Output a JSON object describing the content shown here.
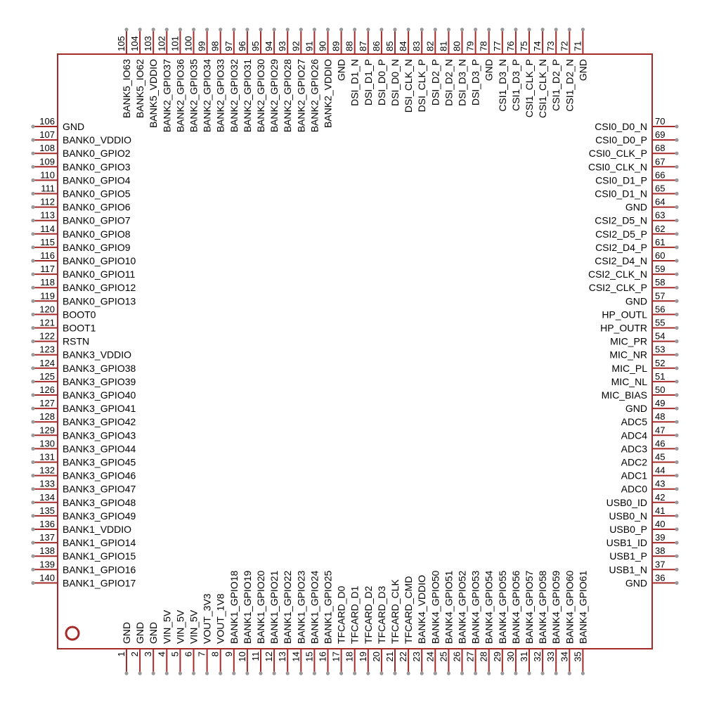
{
  "colors": {
    "outline": "#a52a2a",
    "pin_line": "#a52a2a",
    "pin_dot": "#9a9a9a",
    "text": "#000000",
    "background": "#ffffff"
  },
  "component": {
    "bottom_pins": [
      {
        "num": "1",
        "name": "GND"
      },
      {
        "num": "2",
        "name": "GND"
      },
      {
        "num": "3",
        "name": "GND"
      },
      {
        "num": "4",
        "name": "VIN_5V"
      },
      {
        "num": "5",
        "name": "VIN_5V"
      },
      {
        "num": "6",
        "name": "VIN_5V"
      },
      {
        "num": "7",
        "name": "VOUT_3V3"
      },
      {
        "num": "8",
        "name": "VOUT_1V8"
      },
      {
        "num": "9",
        "name": "BANK1_GPIO18"
      },
      {
        "num": "10",
        "name": "BANK1_GPIO19"
      },
      {
        "num": "11",
        "name": "BANK1_GPIO20"
      },
      {
        "num": "12",
        "name": "BANK1_GPIO21"
      },
      {
        "num": "13",
        "name": "BANK1_GPIO22"
      },
      {
        "num": "14",
        "name": "BANK1_GPIO23"
      },
      {
        "num": "15",
        "name": "BANK1_GPIO24"
      },
      {
        "num": "16",
        "name": "BANK1_GPIO25"
      },
      {
        "num": "17",
        "name": "TFCARD_D0"
      },
      {
        "num": "18",
        "name": "TFCARD_D1"
      },
      {
        "num": "19",
        "name": "TFCARD_D2"
      },
      {
        "num": "20",
        "name": "TFCARD_D3"
      },
      {
        "num": "21",
        "name": "TFCARD_CLK"
      },
      {
        "num": "22",
        "name": "TFCARD_CMD"
      },
      {
        "num": "23",
        "name": "BANK4_VDDIO"
      },
      {
        "num": "24",
        "name": "BANK4_GPIO50"
      },
      {
        "num": "25",
        "name": "BANK4_GPIO51"
      },
      {
        "num": "26",
        "name": "BANK4_GPIO52"
      },
      {
        "num": "27",
        "name": "BANK4_GPIO53"
      },
      {
        "num": "28",
        "name": "BANK4_GPIO54"
      },
      {
        "num": "29",
        "name": "BANK4_GPIO55"
      },
      {
        "num": "30",
        "name": "BANK4_GPIO56"
      },
      {
        "num": "31",
        "name": "BANK4_GPIO57"
      },
      {
        "num": "32",
        "name": "BANK4_GPIO58"
      },
      {
        "num": "33",
        "name": "BANK4_GPIO59"
      },
      {
        "num": "34",
        "name": "BANK4_GPIO60"
      },
      {
        "num": "35",
        "name": "BANK4_GPIO61"
      }
    ],
    "right_pins": [
      {
        "num": "36",
        "name": "GND"
      },
      {
        "num": "37",
        "name": "USB1_N"
      },
      {
        "num": "38",
        "name": "USB1_P"
      },
      {
        "num": "39",
        "name": "USB1_ID"
      },
      {
        "num": "40",
        "name": "USB0_P"
      },
      {
        "num": "41",
        "name": "USB0_N"
      },
      {
        "num": "42",
        "name": "USB0_ID"
      },
      {
        "num": "43",
        "name": "ADC0"
      },
      {
        "num": "44",
        "name": "ADC1"
      },
      {
        "num": "45",
        "name": "ADC2"
      },
      {
        "num": "46",
        "name": "ADC3"
      },
      {
        "num": "47",
        "name": "ADC4"
      },
      {
        "num": "48",
        "name": "ADC5"
      },
      {
        "num": "49",
        "name": "GND"
      },
      {
        "num": "50",
        "name": "MIC_BIAS"
      },
      {
        "num": "51",
        "name": "MIC_NL"
      },
      {
        "num": "52",
        "name": "MIC_PL"
      },
      {
        "num": "53",
        "name": "MIC_NR"
      },
      {
        "num": "54",
        "name": "MIC_PR"
      },
      {
        "num": "55",
        "name": "HP_OUTR"
      },
      {
        "num": "56",
        "name": "HP_OUTL"
      },
      {
        "num": "57",
        "name": "GND"
      },
      {
        "num": "58",
        "name": "CSI2_CLK_P"
      },
      {
        "num": "59",
        "name": "CSI2_CLK_N"
      },
      {
        "num": "60",
        "name": "CSI2_D4_N"
      },
      {
        "num": "61",
        "name": "CSI2_D4_P"
      },
      {
        "num": "62",
        "name": "CSI2_D5_P"
      },
      {
        "num": "63",
        "name": "CSI2_D5_N"
      },
      {
        "num": "64",
        "name": "GND"
      },
      {
        "num": "65",
        "name": "CSI0_D1_N"
      },
      {
        "num": "66",
        "name": "CSI0_D1_P"
      },
      {
        "num": "67",
        "name": "CSI0_CLK_N"
      },
      {
        "num": "68",
        "name": "CSI0_CLK_P"
      },
      {
        "num": "69",
        "name": "CSI0_D0_P"
      },
      {
        "num": "70",
        "name": "CSI0_D0_N"
      }
    ],
    "top_pins": [
      {
        "num": "71",
        "name": "GND"
      },
      {
        "num": "72",
        "name": "CSI1_D2_N"
      },
      {
        "num": "73",
        "name": "CSI1_D2_P"
      },
      {
        "num": "74",
        "name": "CSI1_CLK_N"
      },
      {
        "num": "75",
        "name": "CSI1_CLK_P"
      },
      {
        "num": "76",
        "name": "CSI1_D3_P"
      },
      {
        "num": "77",
        "name": "CSI1_D3_N"
      },
      {
        "num": "78",
        "name": "GND"
      },
      {
        "num": "79",
        "name": "DSI_D3_P"
      },
      {
        "num": "80",
        "name": "DSI_D3_N"
      },
      {
        "num": "81",
        "name": "DSI_D2_N"
      },
      {
        "num": "82",
        "name": "DSI_D2_P"
      },
      {
        "num": "83",
        "name": "DSI_CLK_P"
      },
      {
        "num": "84",
        "name": "DSI_CLK_N"
      },
      {
        "num": "85",
        "name": "DSI_D0_N"
      },
      {
        "num": "86",
        "name": "DSI_D0_P"
      },
      {
        "num": "87",
        "name": "DSI_D1_P"
      },
      {
        "num": "88",
        "name": "DSI_D1_N"
      },
      {
        "num": "89",
        "name": "GND"
      },
      {
        "num": "90",
        "name": "BANK2_VDDIO"
      },
      {
        "num": "91",
        "name": "BANK2_GPIO26"
      },
      {
        "num": "92",
        "name": "BANK2_GPIO27"
      },
      {
        "num": "93",
        "name": "BANK2_GPIO28"
      },
      {
        "num": "94",
        "name": "BANK2_GPIO29"
      },
      {
        "num": "95",
        "name": "BANK2_GPIO30"
      },
      {
        "num": "96",
        "name": "BANK2_GPIO31"
      },
      {
        "num": "97",
        "name": "BANK2_GPIO32"
      },
      {
        "num": "98",
        "name": "BANK2_GPIO33"
      },
      {
        "num": "99",
        "name": "BANK2_GPIO34"
      },
      {
        "num": "100",
        "name": "BANK2_GPIO35"
      },
      {
        "num": "101",
        "name": "BANK2_GPIO36"
      },
      {
        "num": "102",
        "name": "BANK2_GPIO37"
      },
      {
        "num": "103",
        "name": "BANK5_VDDIO"
      },
      {
        "num": "104",
        "name": "BANK5_IO62"
      },
      {
        "num": "105",
        "name": "BANK5_IO63"
      }
    ],
    "left_pins": [
      {
        "num": "106",
        "name": "GND"
      },
      {
        "num": "107",
        "name": "BANK0_VDDIO"
      },
      {
        "num": "108",
        "name": "BANK0_GPIO2"
      },
      {
        "num": "109",
        "name": "BANK0_GPIO3"
      },
      {
        "num": "110",
        "name": "BANK0_GPIO4"
      },
      {
        "num": "111",
        "name": "BANK0_GPIO5"
      },
      {
        "num": "112",
        "name": "BANK0_GPIO6"
      },
      {
        "num": "113",
        "name": "BANK0_GPIO7"
      },
      {
        "num": "114",
        "name": "BANK0_GPIO8"
      },
      {
        "num": "115",
        "name": "BANK0_GPIO9"
      },
      {
        "num": "116",
        "name": "BANK0_GPIO10"
      },
      {
        "num": "117",
        "name": "BANK0_GPIO11"
      },
      {
        "num": "118",
        "name": "BANK0_GPIO12"
      },
      {
        "num": "119",
        "name": "BANK0_GPIO13"
      },
      {
        "num": "120",
        "name": "BOOT0"
      },
      {
        "num": "121",
        "name": "BOOT1"
      },
      {
        "num": "122",
        "name": "RSTN"
      },
      {
        "num": "123",
        "name": "BANK3_VDDIO"
      },
      {
        "num": "124",
        "name": "BANK3_GPIO38"
      },
      {
        "num": "125",
        "name": "BANK3_GPIO39"
      },
      {
        "num": "126",
        "name": "BANK3_GPIO40"
      },
      {
        "num": "127",
        "name": "BANK3_GPIO41"
      },
      {
        "num": "128",
        "name": "BANK3_GPIO42"
      },
      {
        "num": "129",
        "name": "BANK3_GPIO43"
      },
      {
        "num": "130",
        "name": "BANK3_GPIO44"
      },
      {
        "num": "131",
        "name": "BANK3_GPIO45"
      },
      {
        "num": "132",
        "name": "BANK3_GPIO46"
      },
      {
        "num": "133",
        "name": "BANK3_GPIO47"
      },
      {
        "num": "134",
        "name": "BANK3_GPIO48"
      },
      {
        "num": "135",
        "name": "BANK3_GPIO49"
      },
      {
        "num": "136",
        "name": "BANK1_VDDIO"
      },
      {
        "num": "137",
        "name": "BANK1_GPIO14"
      },
      {
        "num": "138",
        "name": "BANK1_GPIO15"
      },
      {
        "num": "139",
        "name": "BANK1_GPIO16"
      },
      {
        "num": "140",
        "name": "BANK1_GPIO17"
      }
    ]
  }
}
